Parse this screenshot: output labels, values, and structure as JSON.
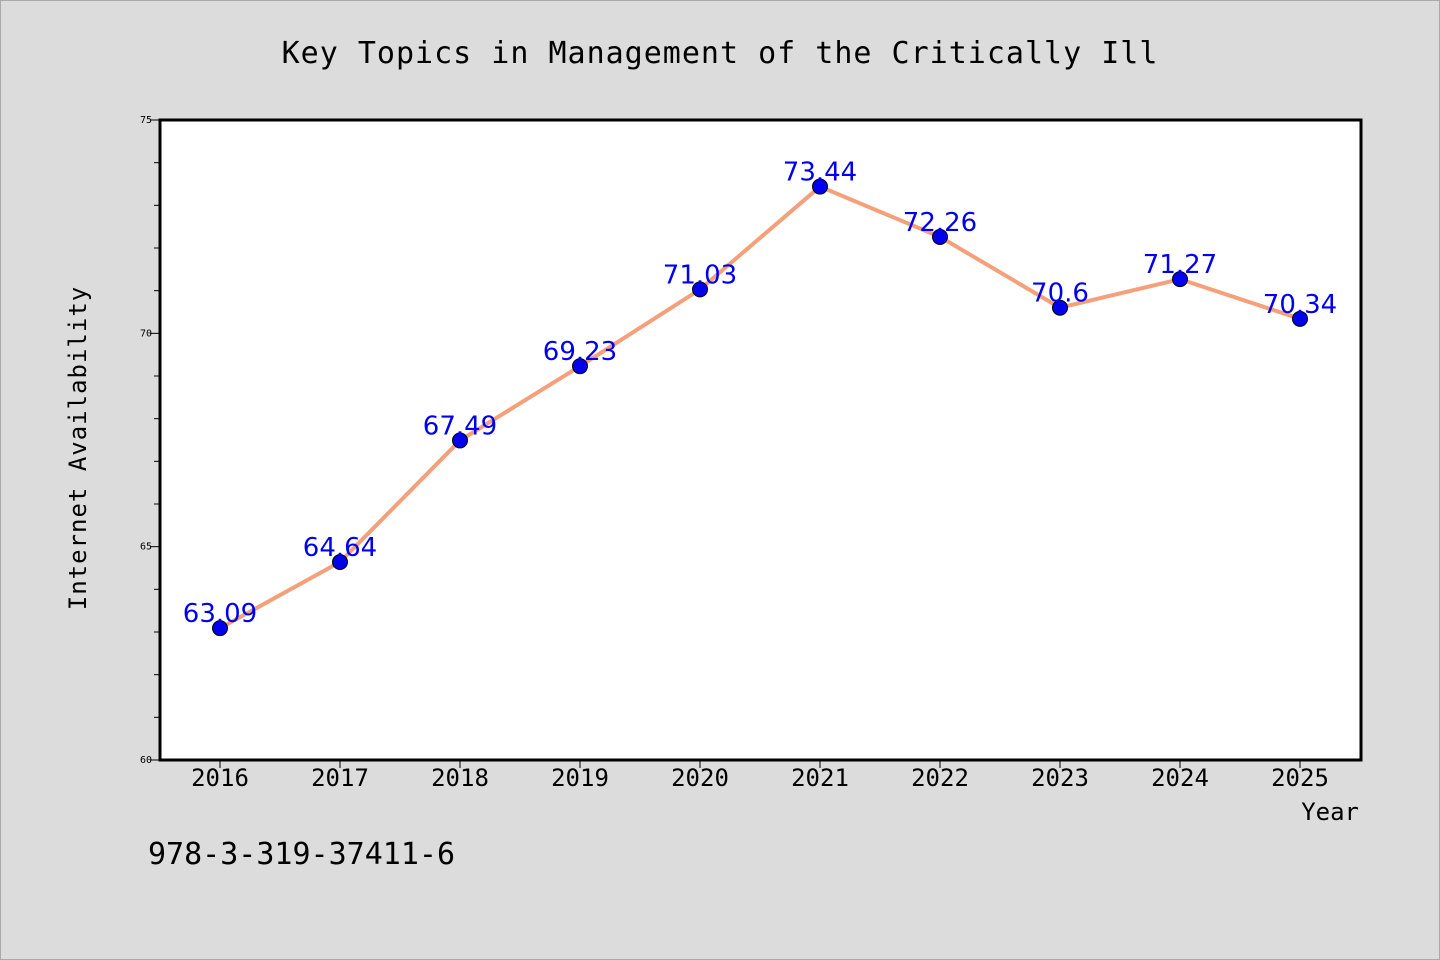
{
  "chart_data": {
    "type": "line",
    "title": "Key Topics in Management of the Critically Ill",
    "xlabel": "Year",
    "ylabel": "Internet Availability",
    "footnote": "978-3-319-37411-6",
    "categories": [
      "2016",
      "2017",
      "2018",
      "2019",
      "2020",
      "2021",
      "2022",
      "2023",
      "2024",
      "2025"
    ],
    "series": [
      {
        "values": [
          63.09,
          64.64,
          67.49,
          69.23,
          71.03,
          73.44,
          72.26,
          70.6,
          71.27,
          70.34
        ],
        "data_labels": [
          "63.09",
          "64.64",
          "67.49",
          "69.23",
          "71.03",
          "73.44",
          "72.26",
          "70.6",
          "71.27",
          "70.34"
        ],
        "line_color": "#f4a07a",
        "marker_color": "#0000ee",
        "label_color": "#0000ee"
      }
    ],
    "ylim": [
      60,
      75
    ],
    "y_ticks": [
      "60",
      "65",
      "70",
      "75"
    ],
    "y_minor_step": 1,
    "grid": false,
    "legend": "none"
  }
}
